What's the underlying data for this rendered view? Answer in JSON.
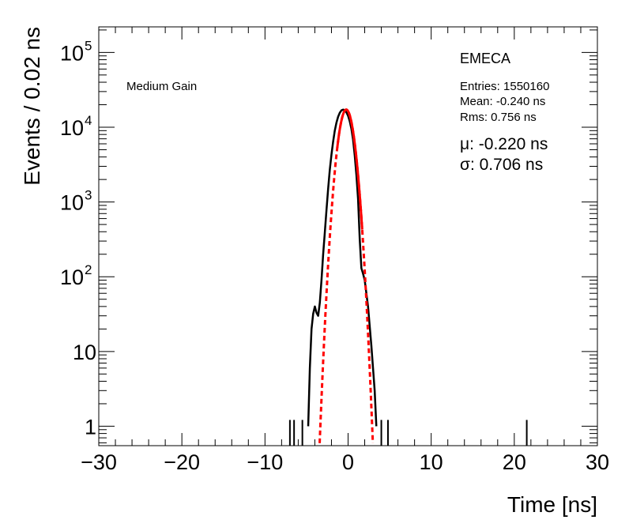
{
  "chart_data": {
    "type": "line",
    "xlabel": "Time [ns]",
    "ylabel": "Events / 0.02 ns",
    "xlim": [
      -30,
      30
    ],
    "ylim": [
      0.55,
      220000
    ],
    "yscale": "log",
    "grid": false,
    "x_ticks": [
      "−30",
      "−20",
      "−10",
      "0",
      "10",
      "20",
      "30"
    ],
    "x_tick_values": [
      -30,
      -20,
      -10,
      0,
      10,
      20,
      30
    ],
    "y_ticks": [
      {
        "value": 1,
        "label": "1",
        "exp": ""
      },
      {
        "value": 10,
        "label": "10",
        "exp": ""
      },
      {
        "value": 100,
        "label": "10",
        "exp": "2"
      },
      {
        "value": 1000,
        "label": "10",
        "exp": "3"
      },
      {
        "value": 10000,
        "label": "10",
        "exp": "4"
      },
      {
        "value": 100000,
        "label": "10",
        "exp": "5"
      }
    ],
    "annotations": {
      "gain": "Medium Gain",
      "detector": "EMECA",
      "entries": "Entries: 1550160",
      "mean": "Mean: -0.240 ns",
      "rms": "Rms: 0.756 ns",
      "fit_mu": "μ: -0.220 ns",
      "fit_sigma": "σ: 0.706 ns"
    },
    "series": [
      {
        "color": "#000000",
        "style": "histogram",
        "x": [
          -4.8,
          -4.6,
          -4.4,
          -4.2,
          -4.0,
          -3.8,
          -3.6,
          -3.4,
          -3.2,
          -3.0,
          -2.8,
          -2.6,
          -2.4,
          -2.2,
          -2.0,
          -1.8,
          -1.6,
          -1.4,
          -1.2,
          -1.0,
          -0.8,
          -0.6,
          -0.4,
          -0.2,
          0.0,
          0.2,
          0.4,
          0.6,
          0.8,
          1.0,
          1.2,
          1.4,
          1.6,
          1.8,
          2.0,
          2.2,
          2.4,
          2.6,
          2.8,
          3.0,
          3.2,
          3.4
        ],
        "values": [
          1,
          6,
          20,
          32,
          40,
          33,
          30,
          45,
          90,
          200,
          390,
          780,
          1500,
          2700,
          4300,
          6400,
          9000,
          11500,
          13800,
          15600,
          16800,
          17200,
          16900,
          15800,
          14200,
          12000,
          9500,
          6800,
          4200,
          2300,
          1100,
          320,
          130,
          110,
          90,
          60,
          40,
          22,
          12,
          6,
          3,
          1
        ],
        "spikes": [
          {
            "x": -7.0,
            "value": 1
          },
          {
            "x": -6.5,
            "value": 1
          },
          {
            "x": -5.5,
            "value": 1
          },
          {
            "x": 4.0,
            "value": 1
          },
          {
            "x": 4.8,
            "value": 1
          },
          {
            "x": 21.5,
            "value": 1
          }
        ]
      },
      {
        "color": "#ff0000",
        "style": "gaussian-fit",
        "amplitude": 17200,
        "mu": -0.22,
        "sigma": 0.706,
        "fit_range": [
          -1.3,
          1.7
        ]
      }
    ]
  }
}
